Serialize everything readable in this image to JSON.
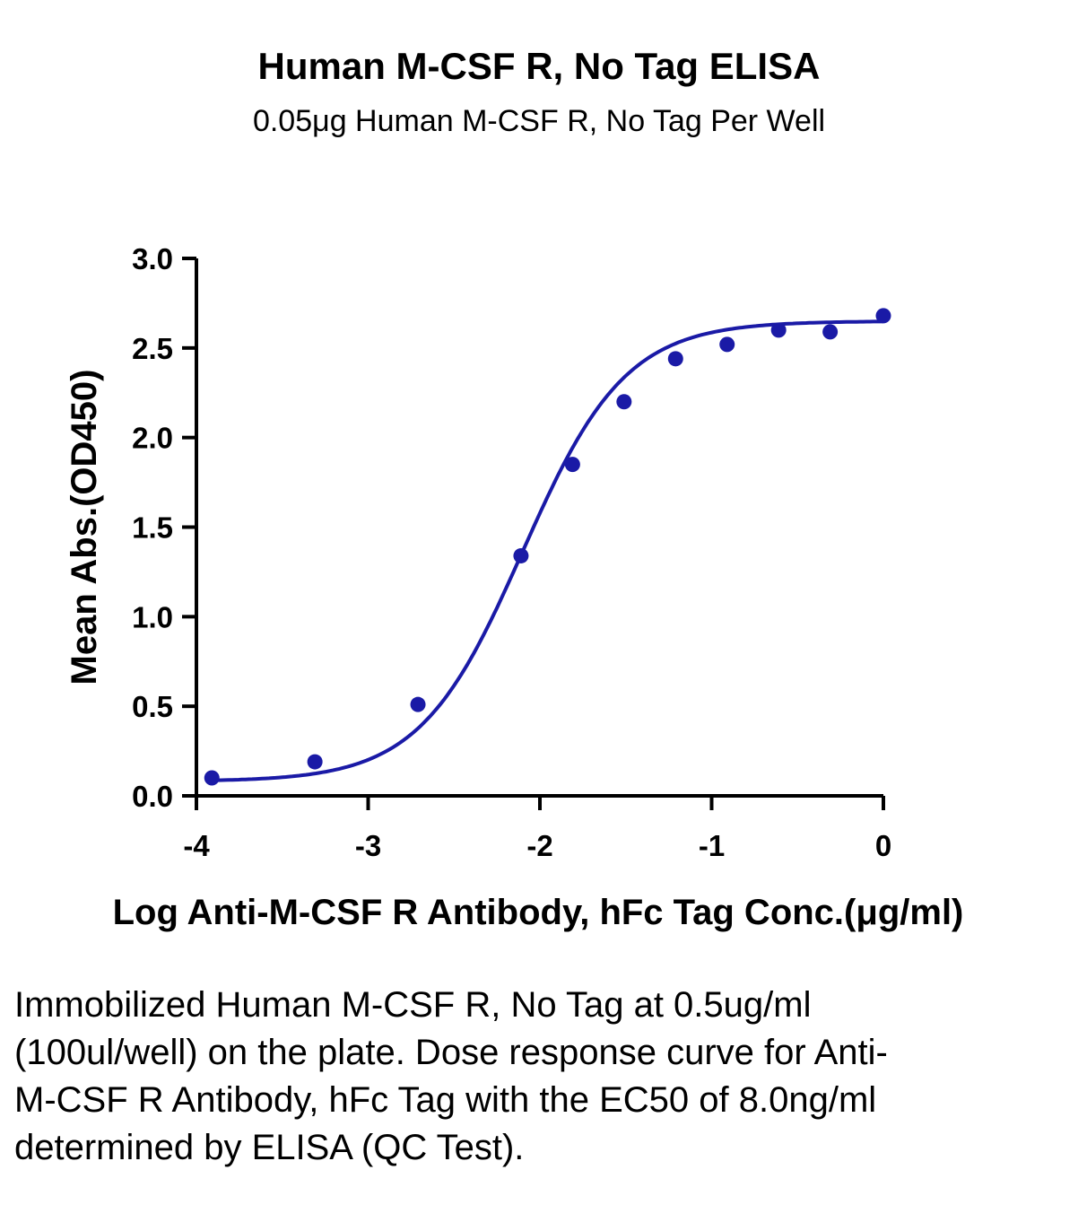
{
  "title": "Human M-CSF R, No Tag ELISA",
  "subtitle": "0.05μg Human M-CSF R, No Tag Per Well",
  "caption": "Immobilized Human M-CSF R, No Tag at 0.5ug/ml (100ul/well) on the plate. Dose response curve for Anti-M-CSF R Antibody, hFc Tag with the EC50 of 8.0ng/ml determined by ELISA (QC Test).",
  "chart_data": {
    "type": "scatter",
    "xlabel": "Log Anti-M-CSF R Antibody, hFc Tag Conc.(μg/ml)",
    "ylabel": "Mean Abs.(OD450)",
    "xlim": [
      -4,
      0
    ],
    "ylim": [
      0,
      3.0
    ],
    "x_ticks": [
      "-4",
      "-3",
      "-2",
      "-1",
      "0"
    ],
    "y_ticks": [
      "0.0",
      "0.5",
      "1.0",
      "1.5",
      "2.0",
      "2.5",
      "3.0"
    ],
    "grid": false,
    "colors": {
      "series": "#1a1aa6"
    },
    "series": [
      {
        "x": [
          -3.91,
          -3.31,
          -2.71,
          -2.11,
          -1.81,
          -1.51,
          -1.21,
          -0.91,
          -0.61,
          -0.31,
          0.0
        ],
        "y": [
          0.1,
          0.19,
          0.51,
          1.34,
          1.85,
          2.2,
          2.44,
          2.52,
          2.6,
          2.59,
          2.68
        ],
        "fit": "4PL"
      }
    ],
    "fit_params": {
      "bottom": 0.08,
      "top": 2.65,
      "log_ec50": -2.1,
      "hill": 1.45
    }
  }
}
